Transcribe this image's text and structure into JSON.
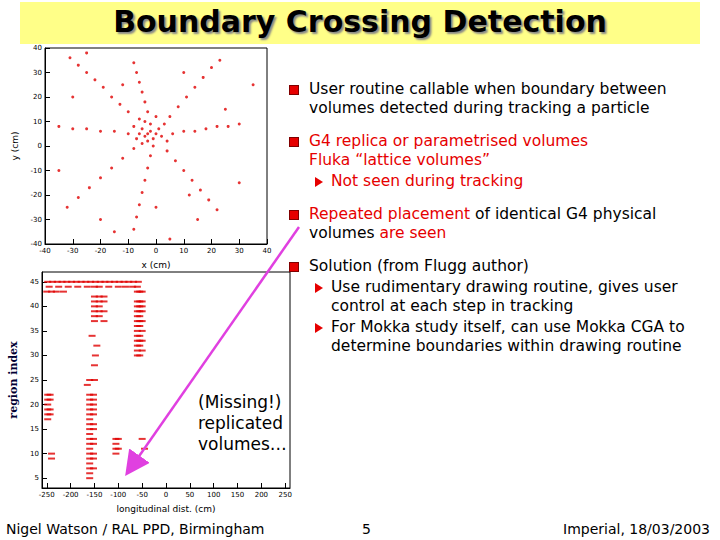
{
  "slide": {
    "title": "Boundary Crossing Detection",
    "bullets": [
      {
        "runs": [
          {
            "text": "User routine callable when boundary between volumes detected during tracking a particle",
            "color": "#000000"
          }
        ]
      },
      {
        "runs": [
          {
            "text": "G4 replica or parametrised volumes\nFluka “lattice volumes”",
            "color": "#e60000"
          }
        ],
        "sub": [
          {
            "runs": [
              {
                "text": "Not seen during tracking",
                "color": "#e60000"
              }
            ]
          }
        ]
      },
      {
        "runs": [
          {
            "text": "Repeated placement",
            "color": "#e60000"
          },
          {
            "text": " of identical G4 physical volumes ",
            "color": "#000000"
          },
          {
            "text": "are seen",
            "color": "#e60000"
          }
        ]
      },
      {
        "runs": [
          {
            "text": "Solution (from Flugg author)",
            "color": "#000000"
          }
        ],
        "sub": [
          {
            "runs": [
              {
                "text": "Use rudimentary drawing routine, gives user control at each step in tracking",
                "color": "#000000"
              }
            ]
          },
          {
            "runs": [
              {
                "text": "For Mokka study itself, can use Mokka CGA to determine boundaries within drawing routine",
                "color": "#000000"
              }
            ]
          }
        ]
      }
    ],
    "annotation": "(Missing!)\nreplicated\nvolumes…",
    "footer": {
      "author": "Nigel Watson / RAL PPD, Birmingham",
      "page": "5",
      "venue": "Imperial, 18/03/2003"
    }
  },
  "chart_data": [
    {
      "type": "scatter",
      "x_label": "x (cm)",
      "y_label": "y (cm)",
      "color": "#e00000",
      "marker": "dot",
      "grid": false,
      "xlim": [
        -40,
        40
      ],
      "xticks": [
        -40,
        -30,
        -20,
        -10,
        0,
        10,
        20,
        30,
        40
      ],
      "ylim": [
        -40,
        40
      ],
      "yticks": [
        -40,
        -30,
        -20,
        -10,
        0,
        10,
        20,
        30,
        40
      ],
      "x": [
        -3,
        -2,
        -4,
        -1,
        -5,
        0,
        -3,
        -6,
        -2,
        1,
        -4,
        -7,
        2,
        -1,
        -5,
        3,
        -8,
        -6,
        0,
        4,
        -10,
        -13,
        -16,
        -19,
        -22,
        -25,
        -28,
        -31,
        -3,
        -4,
        -5,
        -6,
        -7,
        -8,
        5,
        8,
        11,
        14,
        17,
        20,
        23,
        6,
        10,
        14,
        18,
        22,
        26,
        30,
        4,
        7,
        10,
        13,
        16,
        19,
        22,
        -2,
        -3,
        -4,
        -5,
        -6,
        -7,
        -8,
        -8,
        -12,
        -16,
        -20,
        -24,
        -28,
        -32,
        -10,
        -15,
        -20,
        -25,
        -30,
        -35,
        -20,
        -15,
        10,
        25,
        -30,
        15,
        -35,
        30,
        -25,
        5,
        35,
        0,
        -12,
        12
      ],
      "values": [
        5,
        6,
        4,
        3,
        7,
        5,
        2,
        5,
        9,
        7,
        10,
        3,
        4,
        0,
        1,
        9,
        8,
        11,
        12,
        2,
        14,
        17,
        20,
        24,
        27,
        30,
        33,
        36,
        14,
        18,
        22,
        26,
        30,
        34,
        12,
        16,
        20,
        24,
        28,
        32,
        35,
        5,
        6,
        6,
        7,
        8,
        8,
        9,
        -2,
        -6,
        -10,
        -14,
        -18,
        -22,
        -26,
        -4,
        -9,
        -14,
        -19,
        -24,
        -29,
        -34,
        -1,
        -5,
        -9,
        -13,
        -17,
        -21,
        -25,
        5,
        6,
        6,
        7,
        7,
        8,
        -30,
        -35,
        30,
        15,
        20,
        -30,
        -10,
        -15,
        38,
        -38,
        25,
        -25,
        25,
        -20
      ]
    },
    {
      "type": "scatter",
      "x_label": "longitudinal dist. (cm)",
      "y_label": "region index",
      "color": "#e00000",
      "marker": "dash",
      "grid": false,
      "xlim": [
        -260,
        260
      ],
      "xticks": [
        -250,
        -200,
        -150,
        -100,
        -50,
        0,
        50,
        100,
        150,
        200,
        250
      ],
      "ylim": [
        3,
        47
      ],
      "yticks": [
        5,
        10,
        15,
        20,
        25,
        30,
        35,
        40,
        45
      ],
      "x": [
        -248,
        -238,
        -228,
        -218,
        -208,
        -198,
        -188,
        -178,
        -168,
        -158,
        -148,
        -138,
        -128,
        -118,
        -108,
        -98,
        -88,
        -78,
        -68,
        -58,
        -245,
        -225,
        -205,
        -185,
        -165,
        -150,
        -140,
        -120,
        -100,
        -85,
        -70,
        -60,
        -250,
        -240,
        -230,
        -215,
        -60,
        -55,
        -50,
        -150,
        -140,
        -130,
        -150,
        -140,
        -130,
        -150,
        -140,
        -150,
        -140,
        -130,
        -150,
        -140,
        -130,
        -150,
        -60,
        -55,
        -50,
        -60,
        -55,
        -50,
        -60,
        -55,
        -50,
        -60,
        -55,
        -60,
        -55,
        -50,
        -60,
        -55,
        -60,
        -50,
        -60,
        -55,
        -60,
        -55,
        -50,
        -60,
        -55,
        -60,
        -50,
        -60,
        -55,
        -248,
        -243,
        -248,
        -243,
        -248,
        -248,
        -243,
        -248,
        -243,
        -248,
        -160,
        -152,
        -160,
        -152,
        -160,
        -152,
        -160,
        -152,
        -160,
        -152,
        -160,
        -160,
        -152,
        -160,
        -152,
        -160,
        -160,
        -152,
        -160,
        -152,
        -160,
        -160,
        -152,
        -160,
        -152,
        -160,
        -160,
        -152,
        -160,
        -160,
        -105,
        -100,
        -105,
        -105,
        -100,
        -105,
        -50,
        -45,
        -240,
        -240,
        -165,
        -160,
        -150,
        -150,
        -148,
        -145,
        -155
      ],
      "values": [
        45,
        45,
        45,
        45,
        45,
        45,
        45,
        45,
        45,
        45,
        45,
        45,
        45,
        45,
        45,
        45,
        45,
        45,
        45,
        45,
        44,
        44,
        44,
        44,
        44,
        44,
        44,
        44,
        44,
        44,
        44,
        44,
        43,
        43,
        43,
        43,
        43,
        43,
        43,
        42,
        42,
        42,
        41,
        41,
        41,
        40,
        40,
        39,
        39,
        39,
        38,
        38,
        37,
        37,
        41,
        41,
        41,
        40,
        40,
        40,
        39,
        39,
        39,
        38,
        38,
        37,
        37,
        37,
        36,
        36,
        35,
        35,
        34,
        34,
        33,
        33,
        33,
        32,
        32,
        31,
        31,
        30,
        30,
        22,
        22,
        21,
        21,
        20,
        19,
        19,
        18,
        18,
        17,
        22,
        22,
        21,
        21,
        20,
        20,
        19,
        19,
        18,
        18,
        17,
        16,
        16,
        15,
        15,
        14,
        13,
        13,
        12,
        12,
        11,
        10,
        10,
        9,
        9,
        8,
        7,
        7,
        6,
        5,
        13,
        13,
        12,
        11,
        11,
        10,
        13,
        11,
        9,
        10,
        24,
        25,
        25,
        28,
        30,
        32,
        34
      ]
    }
  ]
}
